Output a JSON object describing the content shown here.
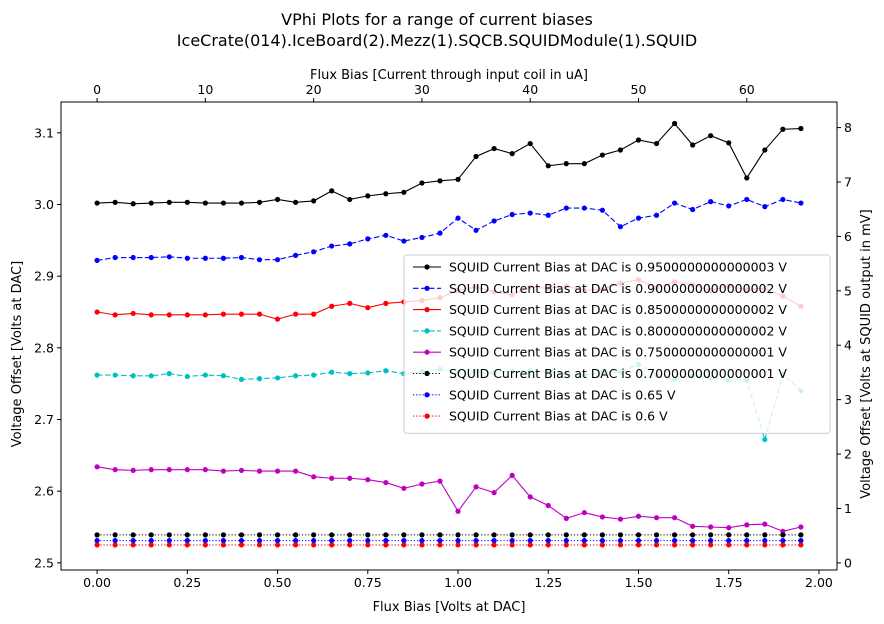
{
  "chart_data": {
    "type": "line",
    "title": "VPhi Plots for a range of current biases",
    "subtitle": "IceCrate(014).IceBoard(2).Mezz(1).SQCB.SQUIDModule(1).SQUID",
    "xlabel": "Flux Bias [Volts at DAC]",
    "ylabel": "Voltage Offset [Volts at DAC]",
    "x2label": "Flux Bias [Current through input coil in uA]",
    "y2label": "Voltage Offset [Volts at SQUID output in mV]",
    "xlim": [
      -0.1,
      2.05
    ],
    "ylim": [
      2.49,
      3.143
    ],
    "x2lim": [
      -3.33,
      68.33
    ],
    "y2lim": [
      -0.131,
      8.47
    ],
    "xticks": [
      0.0,
      0.25,
      0.5,
      0.75,
      1.0,
      1.25,
      1.5,
      1.75,
      2.0
    ],
    "xtick_labels": [
      "0.00",
      "0.25",
      "0.50",
      "0.75",
      "1.00",
      "1.25",
      "1.50",
      "1.75",
      "2.00"
    ],
    "yticks": [
      2.5,
      2.6,
      2.7,
      2.8,
      2.9,
      3.0,
      3.1
    ],
    "ytick_labels": [
      "2.5",
      "2.6",
      "2.7",
      "2.8",
      "2.9",
      "3.0",
      "3.1"
    ],
    "x2ticks": [
      0,
      10,
      20,
      30,
      40,
      50,
      60
    ],
    "x2tick_labels": [
      "0",
      "10",
      "20",
      "30",
      "40",
      "50",
      "60"
    ],
    "y2ticks": [
      0,
      1,
      2,
      3,
      4,
      5,
      6,
      7,
      8
    ],
    "y2tick_labels": [
      "0",
      "1",
      "2",
      "3",
      "4",
      "5",
      "6",
      "7",
      "8"
    ],
    "grid": false,
    "legend_position": "center-right",
    "x": [
      0.0,
      0.05,
      0.1,
      0.15,
      0.2,
      0.25,
      0.3,
      0.35,
      0.4,
      0.45,
      0.5,
      0.55,
      0.6,
      0.65,
      0.7,
      0.75,
      0.8,
      0.85,
      0.9,
      0.95,
      1.0,
      1.05,
      1.1,
      1.15,
      1.2,
      1.25,
      1.3,
      1.35,
      1.4,
      1.45,
      1.5,
      1.55,
      1.6,
      1.65,
      1.7,
      1.75,
      1.8,
      1.85,
      1.9,
      1.95
    ],
    "series": [
      {
        "name": "SQUID Current Bias at DAC is 0.9500000000000003 V",
        "color": "#000000",
        "dash": "solid",
        "values": [
          3.002,
          3.003,
          3.001,
          3.002,
          3.003,
          3.003,
          3.002,
          3.002,
          3.002,
          3.003,
          3.007,
          3.003,
          3.005,
          3.019,
          3.007,
          3.012,
          3.015,
          3.017,
          3.03,
          3.033,
          3.035,
          3.067,
          3.078,
          3.071,
          3.085,
          3.054,
          3.057,
          3.057,
          3.069,
          3.076,
          3.09,
          3.085,
          3.113,
          3.083,
          3.096,
          3.086,
          3.037,
          3.076,
          3.105,
          3.106
        ]
      },
      {
        "name": "SQUID Current Bias at DAC is 0.9000000000000002 V",
        "color": "#0000ff",
        "dash": "dashed",
        "values": [
          2.922,
          2.926,
          2.926,
          2.926,
          2.927,
          2.925,
          2.925,
          2.925,
          2.926,
          2.923,
          2.923,
          2.929,
          2.934,
          2.942,
          2.945,
          2.952,
          2.957,
          2.949,
          2.954,
          2.96,
          2.981,
          2.964,
          2.977,
          2.986,
          2.988,
          2.985,
          2.995,
          2.995,
          2.992,
          2.969,
          2.981,
          2.985,
          3.002,
          2.993,
          3.004,
          2.998,
          3.007,
          2.997,
          3.007,
          3.002
        ]
      },
      {
        "name": "SQUID Current Bias at DAC is 0.8500000000000002 V",
        "color": "#ff0000",
        "dash": "solid",
        "values": [
          2.85,
          2.846,
          2.848,
          2.846,
          2.846,
          2.846,
          2.846,
          2.847,
          2.847,
          2.847,
          2.84,
          2.847,
          2.847,
          2.858,
          2.862,
          2.856,
          2.862,
          2.864,
          2.866,
          2.87,
          2.88,
          2.885,
          2.878,
          2.874,
          2.885,
          2.883,
          2.886,
          2.88,
          2.882,
          2.89,
          2.895,
          2.884,
          2.892,
          2.888,
          2.88,
          2.886,
          2.881,
          2.883,
          2.872,
          2.858
        ]
      },
      {
        "name": "SQUID Current Bias at DAC is 0.8000000000000002 V",
        "color": "#00bfbf",
        "dash": "dashed",
        "values": [
          2.762,
          2.762,
          2.761,
          2.761,
          2.764,
          2.76,
          2.762,
          2.761,
          2.756,
          2.757,
          2.758,
          2.761,
          2.762,
          2.766,
          2.764,
          2.765,
          2.768,
          2.764,
          2.767,
          2.77,
          2.766,
          2.767,
          2.765,
          2.767,
          2.768,
          2.766,
          2.764,
          2.762,
          2.766,
          2.766,
          2.777,
          2.762,
          2.756,
          2.761,
          2.758,
          2.755,
          2.755,
          2.672,
          2.763,
          2.74
        ]
      },
      {
        "name": "SQUID Current Bias at DAC is 0.7500000000000001 V",
        "color": "#bf00bf",
        "dash": "solid",
        "values": [
          2.634,
          2.63,
          2.629,
          2.63,
          2.63,
          2.63,
          2.63,
          2.628,
          2.629,
          2.628,
          2.628,
          2.628,
          2.62,
          2.618,
          2.618,
          2.616,
          2.612,
          2.604,
          2.61,
          2.614,
          2.572,
          2.606,
          2.598,
          2.622,
          2.592,
          2.58,
          2.562,
          2.57,
          2.564,
          2.561,
          2.565,
          2.563,
          2.563,
          2.551,
          2.55,
          2.549,
          2.553,
          2.554,
          2.544,
          2.55
        ]
      },
      {
        "name": "SQUID Current Bias at DAC is 0.7000000000000001 V",
        "color": "#000000",
        "dash": "dotted",
        "values": [
          2.539,
          2.539,
          2.539,
          2.539,
          2.539,
          2.539,
          2.539,
          2.539,
          2.539,
          2.539,
          2.539,
          2.539,
          2.539,
          2.539,
          2.539,
          2.539,
          2.539,
          2.539,
          2.539,
          2.539,
          2.539,
          2.539,
          2.539,
          2.539,
          2.539,
          2.539,
          2.539,
          2.539,
          2.539,
          2.539,
          2.539,
          2.539,
          2.539,
          2.539,
          2.539,
          2.539,
          2.539,
          2.539,
          2.539,
          2.539
        ]
      },
      {
        "name": "SQUID Current Bias at DAC is 0.65 V",
        "color": "#0000ff",
        "dash": "dotted",
        "values": [
          2.531,
          2.531,
          2.531,
          2.531,
          2.531,
          2.531,
          2.531,
          2.531,
          2.531,
          2.531,
          2.531,
          2.531,
          2.531,
          2.531,
          2.531,
          2.531,
          2.531,
          2.531,
          2.531,
          2.531,
          2.531,
          2.531,
          2.531,
          2.531,
          2.531,
          2.531,
          2.531,
          2.531,
          2.531,
          2.531,
          2.531,
          2.531,
          2.531,
          2.531,
          2.531,
          2.531,
          2.531,
          2.531,
          2.531,
          2.531
        ]
      },
      {
        "name": "SQUID Current Bias at DAC is 0.6 V",
        "color": "#ff0000",
        "dash": "dotted",
        "values": [
          2.525,
          2.525,
          2.525,
          2.525,
          2.525,
          2.525,
          2.525,
          2.525,
          2.525,
          2.525,
          2.525,
          2.525,
          2.525,
          2.525,
          2.525,
          2.525,
          2.525,
          2.525,
          2.525,
          2.525,
          2.525,
          2.525,
          2.525,
          2.525,
          2.525,
          2.525,
          2.525,
          2.525,
          2.525,
          2.525,
          2.525,
          2.525,
          2.525,
          2.525,
          2.525,
          2.525,
          2.525,
          2.525,
          2.525,
          2.525
        ]
      }
    ]
  }
}
